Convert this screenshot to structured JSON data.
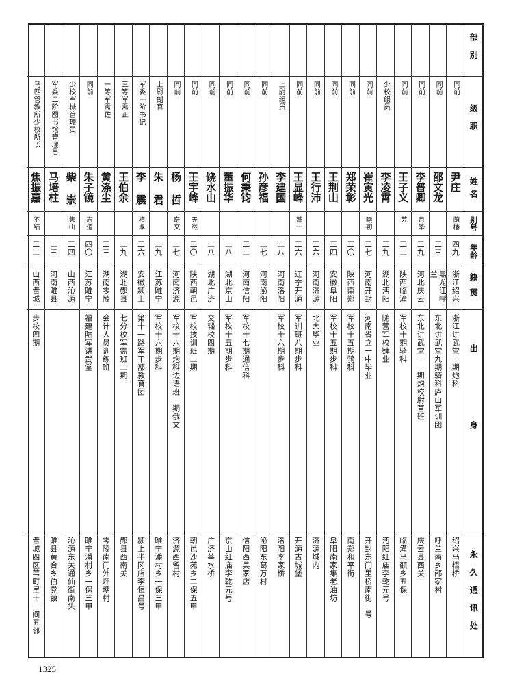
{
  "headers": [
    "部别",
    "级职",
    "姓名",
    "别号",
    "年龄",
    "籍贯",
    "出身",
    "永久通讯处"
  ],
  "records": [
    [
      "",
      "同前",
      "尹庄",
      "荫椿",
      "四九",
      "浙江绍兴",
      "浙江讲武堂一期炮科",
      "绍兴马梧桥"
    ],
    [
      "",
      "同前",
      "邵文龙",
      "",
      "三三",
      "黑龙江呼兰",
      "东北讲武堂九期骑科庐山军训团",
      "呼兰南乡邵家村"
    ],
    [
      "",
      "同前",
      "李普卿",
      "月华",
      "三九",
      "河北庆云",
      "东北讲武堂一一期炮校尉官班",
      "庆云县西关"
    ],
    [
      "",
      "同前",
      "王子义",
      "芸",
      "三二",
      "陕西临潼",
      "军校十期骑科",
      "临潼马额乡五保"
    ],
    [
      "",
      "少校组员",
      "李凌霄",
      "",
      "三九",
      "湖北沔阳",
      "随营军校肄业",
      "沔阳红庙李乾元号"
    ],
    [
      "",
      "同前",
      "崔寅光",
      "曦初",
      "三七",
      "河南开封",
      "河南省立一中毕业",
      "开封东门里桥南街一号"
    ],
    [
      "",
      "同前",
      "郑荣彰",
      "",
      "三〇",
      "陕西南郑",
      "军校十五期骑科",
      "南郑和平街"
    ],
    [
      "",
      "同前",
      "王荆山",
      "",
      "三四",
      "安徽阜阳",
      "军校十五期步科",
      "阜阳南家集老油坊"
    ],
    [
      "",
      "同前",
      "王行沛",
      "",
      "三六",
      "河南济源",
      "北大毕业",
      "济源城内"
    ],
    [
      "",
      "同前",
      "王显峰",
      "蓬一",
      "三六",
      "辽宁开源",
      "军训班八期步科",
      "开源古城堡"
    ],
    [
      "",
      "上尉组员",
      "李建国",
      "",
      "二八",
      "河南洛阳",
      "军校十六期步科",
      "洛阳李家桥"
    ],
    [
      "",
      "同前",
      "孙彦福",
      "",
      "二七",
      "河南泌阳",
      "",
      "泌阳东葛万村"
    ],
    [
      "",
      "同前",
      "何秉钧",
      "",
      "三二",
      "河南信阳",
      "军校十七期通信科",
      "信阳西吴家店"
    ],
    [
      "",
      "同前",
      "董振华",
      "",
      "二八",
      "湖北京山",
      "军校十五期步科",
      "京山红庙李乾元号"
    ],
    [
      "",
      "同前",
      "饶水山",
      "",
      "二八",
      "湖北广济",
      "交辎校四期",
      "广济莘水桥"
    ],
    [
      "",
      "同前",
      "王宇峰",
      "天然",
      "三〇",
      "陕西朝邑",
      "军校技训班二期",
      "朝邑沙苑乡二保五甲"
    ],
    [
      "",
      "同前",
      "杨  哲",
      "奇文",
      "二七",
      "河南济源",
      "军校十六期炮科边语班一期俄文",
      "济源西留村"
    ],
    [
      "",
      "上尉副官",
      "朱  君",
      "",
      "二九",
      "江苏睢宁",
      "军校十六期步科",
      "睢宁潘村乡一保三甲"
    ],
    [
      "",
      "军委一阶书记",
      "李  震",
      "植厚",
      "三六",
      "安徽颍上",
      "第十一路军干部教育团",
      "颍上半冈店李恒昌号"
    ],
    [
      "",
      "三等军需正",
      "王伯余",
      "",
      "二九",
      "湖北郧县",
      "七分校军需班二期",
      "郧县西南关"
    ],
    [
      "",
      "一等军需佐",
      "黄涤尘",
      "",
      "三三",
      "湖南零陵",
      "会计人员训练班",
      "零陵南门外坪塘村"
    ],
    [
      "",
      "同前",
      "朱子镜",
      "志道",
      "四〇",
      "江苏睢宁",
      "福建陆军讲武堂",
      "睢宁潘村乡一保三甲"
    ],
    [
      "",
      "少校军械管理员",
      "柴  崇",
      "隽山",
      "三四",
      "山西沁源",
      "",
      "沁源东关通仙街南头"
    ],
    [
      "",
      "军委二阶图书馆管理员",
      "马培柱",
      "",
      "二三",
      "河南睢县",
      "",
      "睢县黄合乡伯党镇"
    ],
    [
      "",
      "马匹管教所少校所长",
      "焦振嘉",
      "丕绩",
      "三二",
      "山西晋城",
      "步校四期",
      "晋城四区苇町里十一间五邻"
    ]
  ],
  "page_number": "1325"
}
